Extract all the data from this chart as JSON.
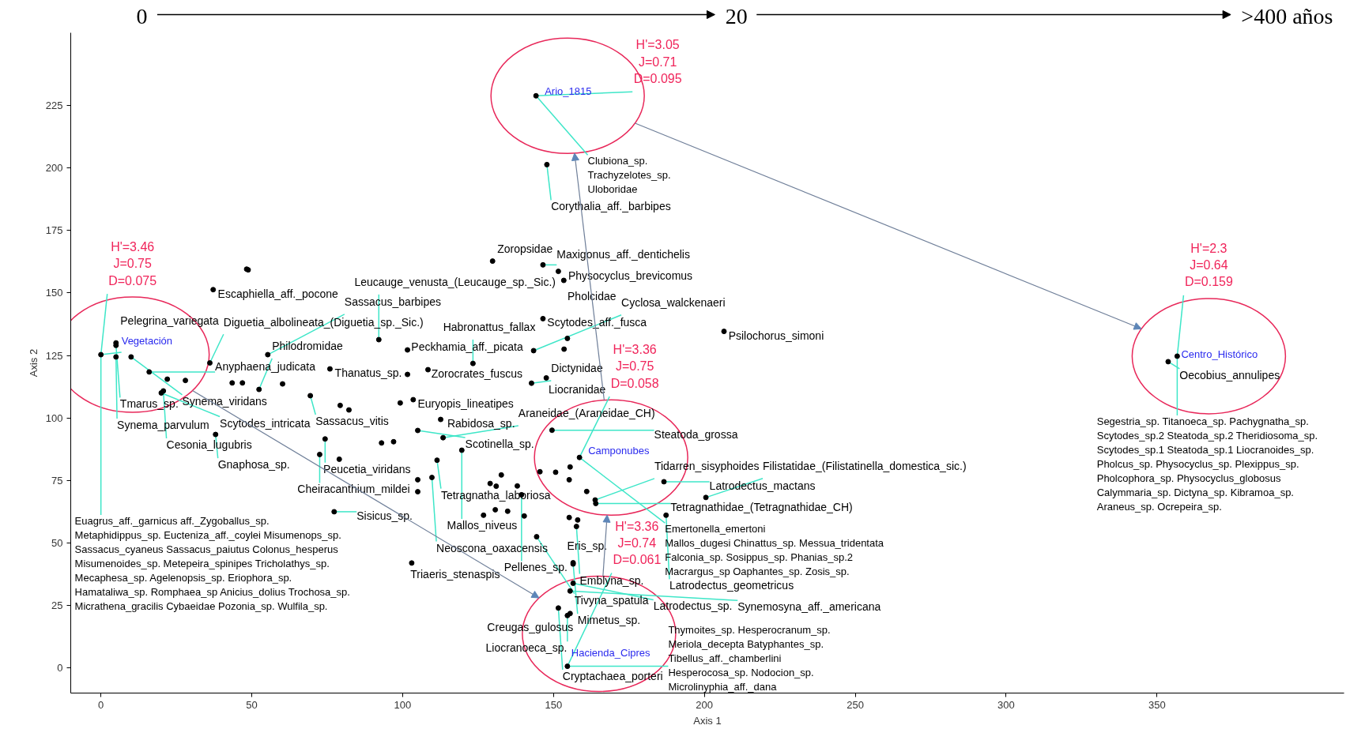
{
  "chart_data": {
    "type": "scatter",
    "xlabel": "Axis 1",
    "ylabel": "Axis 2",
    "xlim": [
      -10,
      412
    ],
    "ylim": [
      -10,
      254
    ],
    "xticks": [
      0,
      50,
      100,
      150,
      200,
      250,
      300,
      350
    ],
    "yticks": [
      0,
      25,
      50,
      75,
      100,
      125,
      150,
      175,
      200,
      225
    ],
    "grid": false,
    "marker": "circle",
    "series": [
      {
        "color": "#000000",
        "x": [
          5,
          5,
          10,
          5,
          16,
          20.7,
          20,
          22,
          28,
          36.1,
          37.2,
          48.3,
          48.8,
          38,
          43.5,
          46.9,
          52.4,
          60.2,
          69.4,
          55.3,
          75.9,
          79.3,
          82.2,
          74.3,
          72.5,
          79,
          77.3,
          92.1,
          101.6,
          108.4,
          101.6,
          103.5,
          99.2,
          112.6,
          105,
          93,
          97,
          113.4,
          119.6,
          111.4,
          109.7,
          105,
          105,
          129.8,
          146.5,
          151.6,
          153.4,
          146.5,
          206.5,
          154.6,
          143.4,
          153.5,
          123.3,
          147.6,
          142.7,
          149.5,
          145.5,
          150.7,
          155.5,
          155.2,
          161,
          129,
          131,
          138,
          139.4,
          132.7,
          163.8,
          164,
          186.6,
          200.5,
          187.3,
          126.8,
          130.7,
          134.8,
          140.3,
          155.2,
          158,
          157.6,
          144.4,
          103,
          156.5,
          156.5,
          156.5,
          155.5,
          151.6,
          155.5,
          154.6,
          147.8,
          353.7
        ],
        "values": [
          130,
          129,
          124.4,
          124.4,
          118.4,
          110.8,
          110,
          115.5,
          115,
          122,
          151.3,
          159.5,
          159.2,
          93.4,
          114,
          114,
          111.4,
          113.6,
          108.9,
          125.3,
          119.6,
          105,
          103.2,
          91.6,
          85.4,
          83.5,
          62.5,
          131.3,
          127.2,
          119.3,
          117.4,
          107.3,
          106,
          99.4,
          95,
          90,
          90.5,
          92.1,
          87.1,
          83.1,
          76.2,
          75.3,
          70.5,
          162.7,
          161.2,
          158.6,
          155,
          139.7,
          134.6,
          131.8,
          126.9,
          127.5,
          121.8,
          116,
          113.9,
          95.1,
          78.5,
          78.3,
          80.4,
          75.3,
          70.6,
          73.8,
          72.7,
          72.8,
          69.3,
          77.2,
          67.2,
          65.8,
          74.5,
          68.2,
          61.1,
          61.1,
          63.3,
          62.7,
          60.8,
          60.2,
          59.2,
          56.6,
          52.5,
          42,
          42.1,
          41.6,
          33.9,
          30.8,
          24,
          21.8,
          21,
          201.3,
          122.5
        ]
      },
      {
        "color": "#000000",
        "x": [
          0,
          154.6,
          158.6,
          144.2,
          356.7
        ],
        "values": [
          125.3,
          0.7,
          84.2,
          228.8,
          124.7
        ]
      }
    ],
    "annotations": [
      "0",
      "20",
      ">400 años",
      {
        "text": "Vegetación",
        "x": 0,
        "y": 125.3
      },
      {
        "text": "H'=3.46\nJ=0.75\nD=0.075",
        "x": 0,
        "y": 125.3
      },
      {
        "text": "Euagrus_aff._garnicus aff._Zygoballus_sp.\nMetaphidippus_sp. Eucteniza_aff._coylei Misumenops_sp.\nSassacus_cyaneus Sassacus_paiutus Colonus_hesperus\nMisumenoides_sp. Metepeira_spinipes Tricholathys_sp.\nMecaphesa_sp. Agelenopsis_sp. Eriophora_sp.\nHamataliwa_sp. Romphaea_sp Anicius_dolius Trochosa_sp.\nMicrathena_gracilis Cybaeidae Pozonia_sp. Wulfila_sp.",
        "x": 0,
        "y": 125.3
      },
      {
        "text": "Hacienda_Cipres",
        "x": 154.6,
        "y": 0.7
      },
      {
        "text": "H'=3.36\nJ=0.74\nD=0.061",
        "x": 154.6,
        "y": 0.7
      },
      {
        "text": "Thymoites_sp. Hesperocranum_sp.\nMeriola_decepta Batyphantes_sp.\nTibellus_aff._chamberlini\nHesperocosa_sp. Nodocion_sp.\nMicrolinyphia_aff._dana",
        "x": 154.6,
        "y": 0.7
      },
      {
        "text": "Camponubes",
        "x": 158.6,
        "y": 84.2
      },
      {
        "text": "H'=3.36\nJ=0.75\nD=0.058",
        "x": 158.6,
        "y": 84.2
      },
      {
        "text": "Emertonella_emertoni\nMallos_dugesi Chinattus_sp. Messua_tridentata\nFalconia_sp. Sosippus_sp. Phanias_sp.2\nMacrargus_sp Oaphantes_sp. Zosis_sp.",
        "x": 158.6,
        "y": 84.2
      },
      {
        "text": "Ario_1815",
        "x": 144.2,
        "y": 228.8
      },
      {
        "text": "H'=3.05\nJ=0.71\nD=0.095",
        "x": 144.2,
        "y": 228.8
      },
      {
        "text": "Clubiona_sp.\nTrachyzelotes_sp.\nUloboridae",
        "x": 144.2,
        "y": 228.8
      },
      {
        "text": "Centro_Histórico",
        "x": 356.7,
        "y": 124.7
      },
      {
        "text": "H'=2.3\nJ=0.64\nD=0.159",
        "x": 356.7,
        "y": 124.7
      },
      {
        "text": "Segestria_sp. Titanoeca_sp. Pachygnatha_sp.\nScytodes_sp.2 Steatoda_sp.2 Theridiosoma_sp.\nScytodes_sp.1 Steatoda_sp.1 Liocranoides_sp.\nPholcus_sp. Physocyclus_sp. Plexippus_sp.\nPholcophora_sp. Physocyclus_globosus\nCalymmaria_sp. Dictyna_sp. Kibramoa_sp.\nAraneus_sp. Ocrepeira_sp.",
        "x": 356.7,
        "y": 124.7
      },
      {
        "text": "Pelegrina_variegata",
        "x": 5,
        "y": 130
      },
      {
        "text": "Tmarus_sp.",
        "x": 5,
        "y": 129
      },
      {
        "text": "Synema_viridans",
        "x": 10,
        "y": 124.4
      },
      {
        "text": "Synema_parvulum",
        "x": 5,
        "y": 124.4
      },
      {
        "text": "Anyphaena_judicata",
        "x": 16,
        "y": 118.4
      },
      {
        "text": "Cesonia_lugubris",
        "x": 20.7,
        "y": 110.8
      },
      {
        "text": "Scytodes_intricata",
        "x": 20,
        "y": 110
      },
      {
        "text": "Diguetia_albolineata_(Diguetia_sp._Sic.)",
        "x": 36.1,
        "y": 122
      },
      {
        "text": "Escaphiella_aff._pocone",
        "x": 37.2,
        "y": 151.3
      },
      {
        "text": "Gnaphosa_sp.",
        "x": 38,
        "y": 93.4
      },
      {
        "text": "Philodromidae",
        "x": 52.4,
        "y": 111.4
      },
      {
        "text": "Sassacus_barbipes",
        "x": 55.3,
        "y": 125.3
      },
      {
        "text": "Thanatus_sp.",
        "x": 75.9,
        "y": 119.6
      },
      {
        "text": "Sassacus_vitis",
        "x": 69.4,
        "y": 108.9
      },
      {
        "text": "Peucetia_viridans",
        "x": 74.3,
        "y": 91.6
      },
      {
        "text": "Cheiracanthium_mildei",
        "x": 72.5,
        "y": 85.4
      },
      {
        "text": "Sisicus_sp.",
        "x": 77.3,
        "y": 62.5
      },
      {
        "text": "Leucauge_venusta_(Leucauge_sp._Sic.)",
        "x": 92.1,
        "y": 131.3
      },
      {
        "text": "Peckhamia_aff._picata",
        "x": 101.6,
        "y": 127.2
      },
      {
        "text": "Zorocrates_fuscus",
        "x": 108.4,
        "y": 119.3
      },
      {
        "text": "Euryopis_lineatipes",
        "x": 103.5,
        "y": 107.3
      },
      {
        "text": "Rabidosa_sp.",
        "x": 112.6,
        "y": 99.4
      },
      {
        "text": "Scotinella_sp.",
        "x": 105,
        "y": 95
      },
      {
        "text": "Araneidae_(Araneidae_CH)",
        "x": 113.4,
        "y": 92.1
      },
      {
        "text": "Mallos_niveus",
        "x": 119.6,
        "y": 87.1
      },
      {
        "text": "Tetragnatha_laboriosa",
        "x": 111.4,
        "y": 83.1
      },
      {
        "text": "Neoscona_oaxacensis",
        "x": 109.7,
        "y": 76.2
      },
      {
        "text": "Zoropsidae",
        "x": 129.8,
        "y": 162.7
      },
      {
        "text": "Maxigonus_aff._dentichelis",
        "x": 146.5,
        "y": 161.2
      },
      {
        "text": "Physocyclus_brevicomus",
        "x": 151.6,
        "y": 158.6
      },
      {
        "text": "Pholcidae",
        "x": 153.4,
        "y": 155
      },
      {
        "text": "Scytodes_aff._fusca",
        "x": 146.5,
        "y": 139.7
      },
      {
        "text": "Psilochorus_simoni",
        "x": 206.5,
        "y": 134.6
      },
      {
        "text": "Cyclosa_walckenaeri",
        "x": 143.4,
        "y": 126.9
      },
      {
        "text": "Habronattus_fallax",
        "x": 123.3,
        "y": 121.8
      },
      {
        "text": "Liocranidae",
        "x": 147.6,
        "y": 116
      },
      {
        "text": "Dictynidae",
        "x": 142.7,
        "y": 113.9
      },
      {
        "text": "Steatoda_grossa",
        "x": 149.5,
        "y": 95.1
      },
      {
        "text": "Pellenes_sp.",
        "x": 139.4,
        "y": 69.3
      },
      {
        "text": "Tidarren_sisyphoides",
        "x": 163.8,
        "y": 67.2
      },
      {
        "text": "Tetragnathidae_(Tetragnathidae_CH)",
        "x": 164,
        "y": 65.8
      },
      {
        "text": "Latrodectus_mactans",
        "x": 186.6,
        "y": 74.5
      },
      {
        "text": "Filistatidae_(Filistatinella_domestica_sic.)",
        "x": 200.5,
        "y": 68.2
      },
      {
        "text": "Latrodectus_geometricus",
        "x": 187.3,
        "y": 61.1
      },
      {
        "text": "Emblyna_sp.",
        "x": 157.6,
        "y": 56.6
      },
      {
        "text": "Tivyna_spatula",
        "x": 144.4,
        "y": 52.5
      },
      {
        "text": "Triaeris_stenaspis",
        "x": 103,
        "y": 42
      },
      {
        "text": "Eris_sp.",
        "x": 156.5,
        "y": 42.1
      },
      {
        "text": "Mimetus_sp.",
        "x": 156.5,
        "y": 41.6
      },
      {
        "text": "Latrodectus_sp.",
        "x": 156.5,
        "y": 33.9
      },
      {
        "text": "Synemosyna_aff._americana",
        "x": 155.5,
        "y": 30.8
      },
      {
        "text": "Cryptachaea_porteri",
        "x": 151.6,
        "y": 24
      },
      {
        "text": "Creugas_gulosus",
        "x": 155.5,
        "y": 21.8
      },
      {
        "text": "Liocranoeca_sp.",
        "x": 154.6,
        "y": 21
      },
      {
        "text": "Corythalia_aff._barbipes",
        "x": 147.8,
        "y": 201.3
      },
      {
        "text": "Oecobius_annulipes",
        "x": 353.7,
        "y": 122.5
      }
    ]
  }
}
